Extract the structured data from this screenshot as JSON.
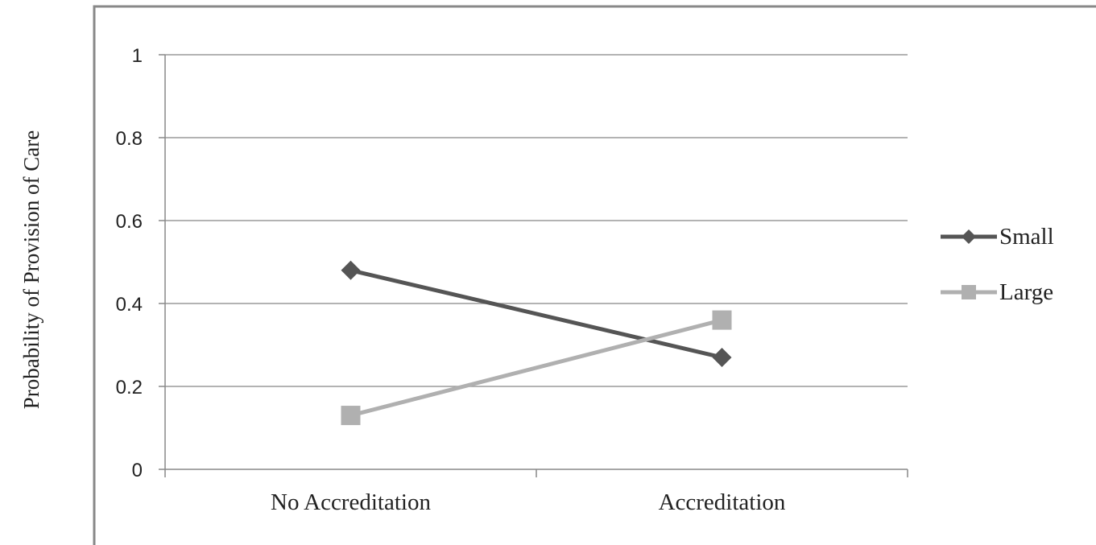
{
  "chart_data": {
    "type": "line",
    "title": "",
    "xlabel": "",
    "ylabel": "Probability of Provision of Care",
    "categories": [
      "No Accreditation",
      "Accreditation"
    ],
    "ylim": [
      0,
      1
    ],
    "yticks": [
      0,
      0.2,
      0.4,
      0.6,
      0.8,
      1
    ],
    "ytick_labels": [
      "0",
      "0.2",
      "0.4",
      "0.6",
      "0.8",
      "1"
    ],
    "grid": true,
    "legend_position": "right",
    "series": [
      {
        "name": "Small",
        "values": [
          0.48,
          0.27
        ],
        "marker": "diamond",
        "color": "#555555"
      },
      {
        "name": "Large",
        "values": [
          0.13,
          0.36
        ],
        "marker": "square",
        "color": "#b0b0b0"
      }
    ],
    "colors": {
      "frame": "#888888",
      "grid": "#9a9a9a",
      "axis": "#888888"
    }
  }
}
